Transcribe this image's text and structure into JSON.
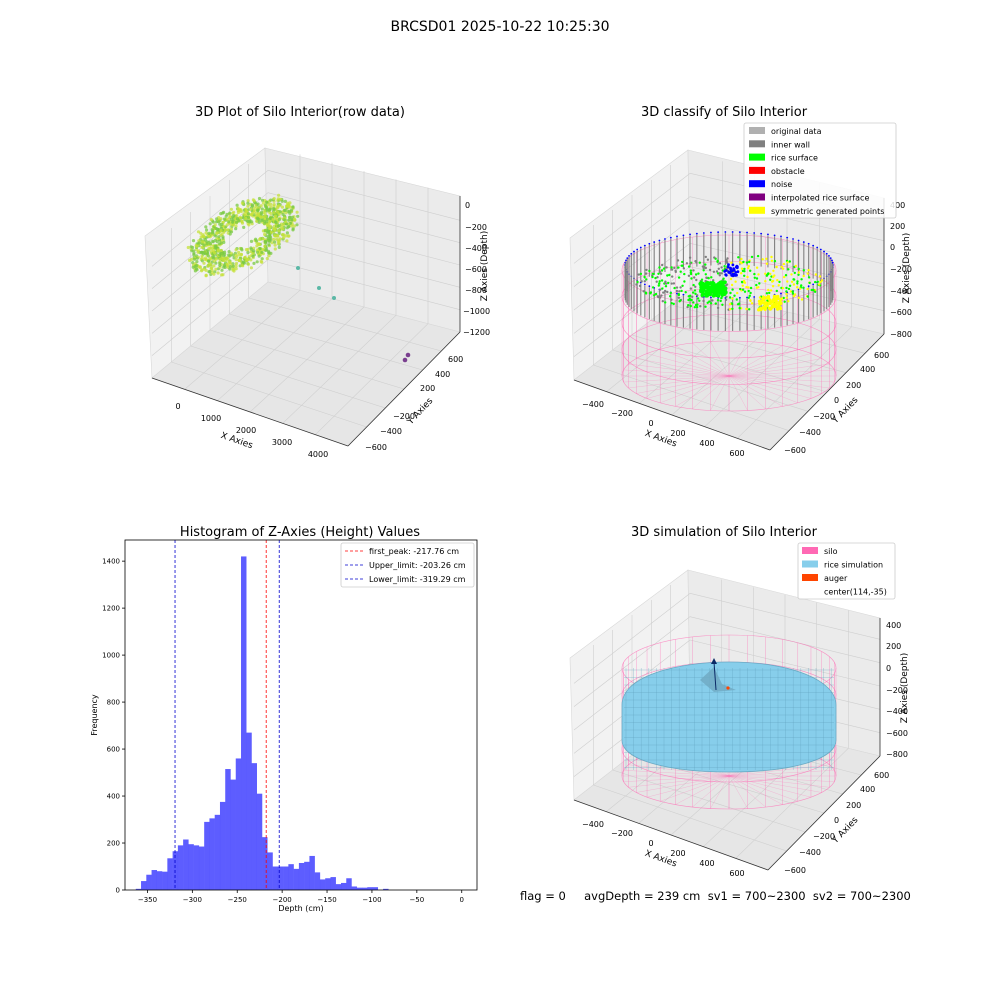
{
  "suptitle": "BRCSD01 2025-10-22 10:25:30",
  "status_line": "flag = 0     avgDepth = 239 cm  sv1 = 700~2300  sv2 = 700~2300",
  "chart_data": [
    {
      "type": "scatter",
      "projection": "3d",
      "title": "3D Plot of Silo Interior(row data)",
      "xlabel": "X Axies",
      "ylabel": "Y Axies",
      "zlabel": "Z Axies (Depth)",
      "x_ticks": [
        "0",
        "1000",
        "2000",
        "3000",
        "4000"
      ],
      "y_ticks": [
        "600",
        "400",
        "200",
        "−200",
        "−400",
        "−600"
      ],
      "z_ticks": [
        "0",
        "−200",
        "−400",
        "−600",
        "−800",
        "−1000",
        "−1200"
      ],
      "grid": true,
      "colors": {
        "cloud_light": "#c5e23a",
        "cloud_dark": "#7ac943",
        "outlier_teal": "#5bb8a6",
        "outlier_purple": "#7a3f8f"
      }
    },
    {
      "type": "scatter",
      "projection": "3d",
      "title": "3D classify of Silo Interior",
      "xlabel": "X Axies",
      "ylabel": "Y Axies",
      "zlabel": "Z Axies (Depth)",
      "x_ticks": [
        "−400",
        "−200",
        "0",
        "200",
        "400",
        "600"
      ],
      "y_ticks": [
        "600",
        "400",
        "200",
        "0",
        "−200",
        "−400",
        "−600"
      ],
      "z_ticks": [
        "400",
        "200",
        "0",
        "−200",
        "−400",
        "−600",
        "−800"
      ],
      "grid": true,
      "legend_position": "top-right",
      "legend": [
        {
          "label": "original data",
          "color": "#b0b0b0"
        },
        {
          "label": "inner wall",
          "color": "#808080"
        },
        {
          "label": "rice surface",
          "color": "#00ff00"
        },
        {
          "label": "obstacle",
          "color": "#ff0000"
        },
        {
          "label": "noise",
          "color": "#0000ff"
        },
        {
          "label": "interpolated rice surface",
          "color": "#800080"
        },
        {
          "label": "symmetric generated points",
          "color": "#ffff00"
        }
      ],
      "colors": {
        "silo_wire": "#ff69b4"
      }
    },
    {
      "type": "bar",
      "title": "Histogram of Z-Axies (Height) Values",
      "xlabel": "Depth (cm)",
      "ylabel": "Frequency",
      "xlim": [
        -375,
        17
      ],
      "ylim": [
        0,
        1490
      ],
      "x_ticks": [
        -350,
        -300,
        -250,
        -200,
        -150,
        -100,
        -50,
        0
      ],
      "x_tick_labels": [
        "−350",
        "−300",
        "−250",
        "−200",
        "−150",
        "−100",
        "−50",
        "0"
      ],
      "y_ticks": [
        0,
        200,
        400,
        600,
        800,
        1000,
        1200,
        1400
      ],
      "bin_start": -363,
      "bin_width": 5.86,
      "values": [
        5,
        38,
        65,
        85,
        80,
        78,
        135,
        165,
        190,
        215,
        195,
        190,
        185,
        290,
        305,
        320,
        375,
        515,
        470,
        560,
        1420,
        670,
        540,
        410,
        225,
        160,
        100,
        100,
        100,
        110,
        90,
        115,
        120,
        145,
        75,
        45,
        50,
        55,
        25,
        30,
        50,
        15,
        10,
        10,
        12,
        12,
        0,
        5
      ],
      "bar_color": "#4b4bff",
      "lines": [
        {
          "label": "first_peak: -217.76 cm",
          "x": -217.76,
          "color": "#ff0000"
        },
        {
          "label": "Upper_limit: -203.26 cm",
          "x": -203.26,
          "color": "#0000cc"
        },
        {
          "label": "Lower_limit: -319.29 cm",
          "x": -319.29,
          "color": "#0000cc"
        }
      ],
      "legend_position": "top-right"
    },
    {
      "type": "surface",
      "projection": "3d",
      "title": "3D simulation of Silo Interior",
      "xlabel": "X Axies",
      "ylabel": "Y Axies",
      "zlabel": "Z Axies (Depth)",
      "x_ticks": [
        "−400",
        "−200",
        "0",
        "200",
        "400",
        "600"
      ],
      "y_ticks": [
        "600",
        "400",
        "200",
        "0",
        "−200",
        "−400",
        "−600"
      ],
      "z_ticks": [
        "400",
        "200",
        "0",
        "−200",
        "−400",
        "−600",
        "−800"
      ],
      "grid": true,
      "legend_position": "top-right",
      "legend": [
        {
          "label": "silo",
          "color": "#ff69b4"
        },
        {
          "label": "rice simulation",
          "color": "#87ceeb"
        },
        {
          "label": "auger",
          "color": "#ff4500"
        },
        {
          "label": "center(114,-35)",
          "color": ""
        }
      ]
    }
  ]
}
